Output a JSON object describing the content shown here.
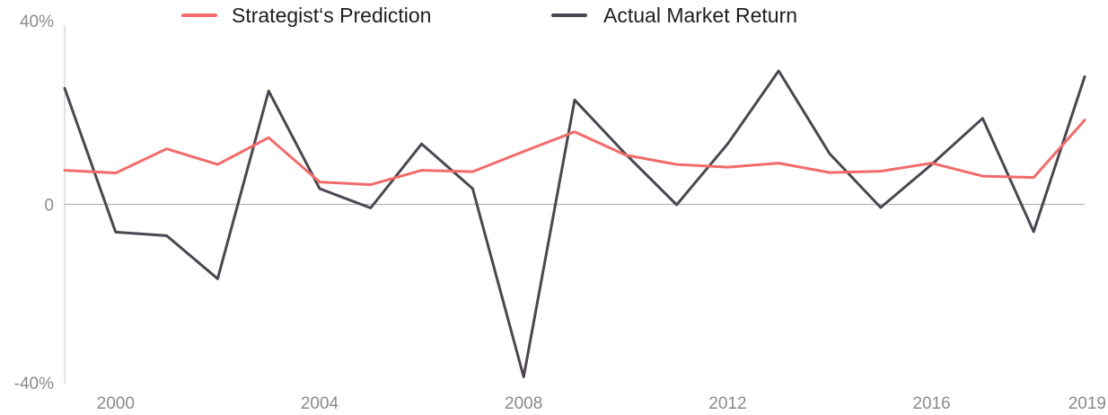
{
  "chart_data": {
    "type": "line",
    "x": [
      1999,
      2000,
      2001,
      2002,
      2003,
      2004,
      2005,
      2006,
      2007,
      2008,
      2009,
      2010,
      2011,
      2012,
      2013,
      2014,
      2015,
      2016,
      2017,
      2018,
      2019
    ],
    "series": [
      {
        "name": "Strategist‘s Prediction",
        "color": "#f26b6b",
        "values": [
          7.6,
          7.0,
          12.4,
          8.9,
          14.9,
          5.0,
          4.4,
          7.6,
          7.3,
          11.8,
          16.2,
          11.0,
          8.9,
          8.3,
          9.2,
          7.1,
          7.4,
          9.2,
          6.3,
          6.0,
          18.8
        ]
      },
      {
        "name": "Actual Market Return",
        "color": "#4b464f",
        "values": [
          25.9,
          -6.2,
          -7.0,
          -16.6,
          25.3,
          3.5,
          -0.8,
          13.5,
          3.5,
          -38.5,
          23.3,
          11.2,
          -0.1,
          13.5,
          29.8,
          11.3,
          -0.7,
          8.9,
          19.2,
          -6.1,
          28.5
        ]
      }
    ],
    "ylim": [
      -40,
      40
    ],
    "yticks": [
      {
        "value": -40,
        "label": "-40%"
      },
      {
        "value": 0,
        "label": "0"
      },
      {
        "value": 40,
        "label": "40%"
      }
    ],
    "xticks": [
      {
        "value": 2000,
        "label": "2000"
      },
      {
        "value": 2004,
        "label": "2004"
      },
      {
        "value": 2008,
        "label": "2008"
      },
      {
        "value": 2012,
        "label": "2012"
      },
      {
        "value": 2016,
        "label": "2016"
      },
      {
        "value": 2019,
        "label": "2019"
      }
    ],
    "grid": false,
    "legend_position": "top"
  }
}
